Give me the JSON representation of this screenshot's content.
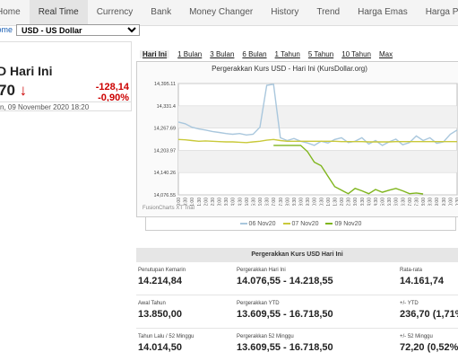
{
  "nav": {
    "items": [
      {
        "label": "Home"
      },
      {
        "label": "Real Time"
      },
      {
        "label": "Currency"
      },
      {
        "label": "Bank"
      },
      {
        "label": "Money Changer"
      },
      {
        "label": "History"
      },
      {
        "label": "Trend"
      },
      {
        "label": "Harga Emas"
      },
      {
        "label": "Harga Perak"
      }
    ]
  },
  "breadcrumb": {
    "home": "Home",
    "select_value": "USD - US Dollar"
  },
  "summary": {
    "title": "D Hari Ini",
    "value": "70",
    "change_abs": "-128,14",
    "change_pct": "-0,90%",
    "date": "n, 09 November 2020 18:20"
  },
  "tabs": [
    "Hari Ini",
    "1 Bulan",
    "3 Bulan",
    "6 Bulan",
    "1 Tahun",
    "5 Tahun",
    "10 Tahun",
    "Max"
  ],
  "chart_data": {
    "type": "line",
    "title": "Pergerakkan Kurs USD - Hari Ini (KursDollar.org)",
    "yticks": [
      "14,395.11",
      "14,331.4",
      "14,267.69",
      "14,203.97",
      "14,140.26",
      "14,076.55"
    ],
    "ylim": [
      14076.55,
      14395.11
    ],
    "x": [
      "00:00",
      "00:30",
      "01:00",
      "01:30",
      "02:00",
      "02:30",
      "03:00",
      "03:30",
      "04:00",
      "04:30",
      "05:00",
      "05:30",
      "06:00",
      "06:30",
      "07:00",
      "07:30",
      "08:00",
      "08:30",
      "09:00",
      "09:30",
      "10:00",
      "10:30",
      "11:00",
      "11:30",
      "12:00",
      "12:30",
      "13:00",
      "13:30",
      "14:00",
      "14:30",
      "15:00",
      "15:30",
      "16:00",
      "16:30",
      "17:00",
      "17:30",
      "18:00",
      "18:30",
      "19:00",
      "19:30",
      "20:00",
      "20:30"
    ],
    "series": [
      {
        "name": "06 Nov20",
        "color": "#a9c7dd",
        "values": [
          14285,
          14280,
          14270,
          14265,
          14262,
          14258,
          14255,
          14252,
          14250,
          14252,
          14248,
          14250,
          14270,
          14390,
          14393,
          14240,
          14232,
          14238,
          14230,
          14225,
          14218,
          14230,
          14225,
          14235,
          14240,
          14226,
          14230,
          14240,
          14222,
          14232,
          14218,
          14228,
          14236,
          14220,
          14226,
          14245,
          14232,
          14240,
          14224,
          14228,
          14250,
          14262
        ]
      },
      {
        "name": "07 Nov20",
        "color": "#c9c93a",
        "values": [
          14235,
          14234,
          14232,
          14230,
          14231,
          14230,
          14229,
          14228,
          14228,
          14227,
          14226,
          14228,
          14230,
          14233,
          14235,
          14232,
          14230,
          14230,
          14230,
          14230,
          14230,
          14230,
          14230,
          14230,
          14229,
          14229,
          14229,
          14229,
          14228,
          14228,
          14228,
          14228,
          14229,
          14229,
          14229,
          14229,
          14229,
          14229,
          14229,
          14229,
          14229,
          14229
        ]
      },
      {
        "name": "09 Nov20",
        "color": "#7fb51c",
        "values": [
          null,
          null,
          null,
          null,
          null,
          null,
          null,
          null,
          null,
          null,
          null,
          null,
          null,
          null,
          14218,
          14218,
          14218,
          14218,
          14218,
          14200,
          14170,
          14160,
          14130,
          14100,
          14090,
          14080,
          14095,
          14088,
          14080,
          14092,
          14084,
          14090,
          14095,
          14088,
          14080,
          14082,
          14079,
          null,
          null,
          null,
          null,
          null
        ]
      }
    ],
    "footer": "FusionCharts XT Trial"
  },
  "table": {
    "header": "Pergerakkan Kurs USD Hari Ini",
    "rows": [
      [
        {
          "label": "Penutupan Kemarin",
          "value": "14.214,84"
        },
        {
          "label": "Pergerakkan Hari Ini",
          "value": "14.076,55 - 14.218,55"
        },
        {
          "label": "Rata-rata",
          "value": "14.161,74"
        }
      ],
      [
        {
          "label": "Awal Tahun",
          "value": "13.850,00"
        },
        {
          "label": "Pergerakkan YTD",
          "value": "13.609,55 - 16.718,50"
        },
        {
          "label": "+/- YTD",
          "value": "236,70 (1,71%"
        }
      ],
      [
        {
          "label": "Tahun Lalu / 52 Minggu",
          "value": "14.014,50"
        },
        {
          "label": "Pergerakkan 52 Minggu",
          "value": "13.609,55 - 16.718,50"
        },
        {
          "label": "+/- 52 Minggu",
          "value": "72,20 (0,52%"
        }
      ]
    ]
  }
}
